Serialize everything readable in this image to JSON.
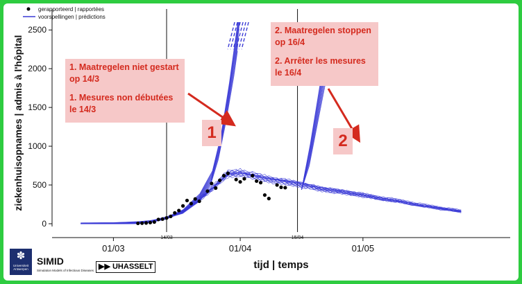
{
  "chart_data": {
    "type": "line",
    "title": "",
    "xlabel": "tijd | temps",
    "ylabel": "ziekenhuisopnames | admis à l'hôpital",
    "ylim": [
      0,
      2600
    ],
    "x_ticks": [
      "01/03",
      "01/04",
      "01/05"
    ],
    "y_ticks": [
      0,
      500,
      1000,
      1500,
      2000,
      2500
    ],
    "vlines": [
      {
        "date": "2020-03-14",
        "label": "14/03"
      },
      {
        "date": "2020-04-15",
        "label": "15/04"
      }
    ],
    "legend": {
      "placement": "top-left",
      "entries": [
        {
          "label": "gerapporteerd | rapportées",
          "marker": "point"
        },
        {
          "label": "voorspellingen | prédictions",
          "marker": "line"
        }
      ]
    },
    "series": [
      {
        "name": "gerapporteerd | rapportées",
        "type": "scatter",
        "points": [
          [
            "2020-03-07",
            5
          ],
          [
            "2020-03-08",
            7
          ],
          [
            "2020-03-09",
            10
          ],
          [
            "2020-03-10",
            15
          ],
          [
            "2020-03-11",
            22
          ],
          [
            "2020-03-12",
            55
          ],
          [
            "2020-03-13",
            60
          ],
          [
            "2020-03-14",
            75
          ],
          [
            "2020-03-15",
            95
          ],
          [
            "2020-03-16",
            140
          ],
          [
            "2020-03-17",
            170
          ],
          [
            "2020-03-18",
            230
          ],
          [
            "2020-03-19",
            300
          ],
          [
            "2020-03-20",
            260
          ],
          [
            "2020-03-21",
            320
          ],
          [
            "2020-03-22",
            290
          ],
          [
            "2020-03-24",
            420
          ],
          [
            "2020-03-25",
            520
          ],
          [
            "2020-03-26",
            460
          ],
          [
            "2020-03-27",
            560
          ],
          [
            "2020-03-28",
            620
          ],
          [
            "2020-03-29",
            650
          ],
          [
            "2020-03-31",
            570
          ],
          [
            "2020-04-01",
            540
          ],
          [
            "2020-04-02",
            580
          ],
          [
            "2020-04-04",
            620
          ],
          [
            "2020-04-05",
            550
          ],
          [
            "2020-04-06",
            530
          ],
          [
            "2020-04-07",
            370
          ],
          [
            "2020-04-08",
            325
          ],
          [
            "2020-04-10",
            500
          ],
          [
            "2020-04-11",
            470
          ],
          [
            "2020-04-12",
            465
          ]
        ]
      },
      {
        "name": "voorspellingen | prédictions",
        "type": "line",
        "points": [
          [
            "2020-02-22",
            0
          ],
          [
            "2020-03-01",
            3
          ],
          [
            "2020-03-07",
            15
          ],
          [
            "2020-03-10",
            30
          ],
          [
            "2020-03-14",
            75
          ],
          [
            "2020-03-18",
            160
          ],
          [
            "2020-03-22",
            310
          ],
          [
            "2020-03-26",
            500
          ],
          [
            "2020-03-29",
            640
          ],
          [
            "2020-04-01",
            660
          ],
          [
            "2020-04-05",
            610
          ],
          [
            "2020-04-10",
            560
          ],
          [
            "2020-04-15",
            520
          ],
          [
            "2020-04-20",
            460
          ],
          [
            "2020-04-25",
            420
          ],
          [
            "2020-04-30",
            380
          ],
          [
            "2020-05-05",
            330
          ],
          [
            "2020-05-10",
            290
          ],
          [
            "2020-05-15",
            240
          ],
          [
            "2020-05-20",
            200
          ],
          [
            "2020-05-25",
            160
          ]
        ]
      },
      {
        "name": "",
        "type": "line",
        "points": [
          [
            "2020-03-14",
            75
          ],
          [
            "2020-03-18",
            160
          ],
          [
            "2020-03-22",
            340
          ],
          [
            "2020-03-25",
            600
          ],
          [
            "2020-03-27",
            1000
          ],
          [
            "2020-03-29",
            1600
          ],
          [
            "2020-03-31",
            2300
          ],
          [
            "2020-04-01",
            2700
          ]
        ]
      },
      {
        "name": "",
        "type": "line",
        "points": [
          [
            "2020-04-16",
            440
          ],
          [
            "2020-04-18",
            900
          ],
          [
            "2020-04-20",
            1500
          ],
          [
            "2020-04-22",
            2100
          ],
          [
            "2020-04-24",
            2700
          ]
        ]
      }
    ]
  },
  "annotations": {
    "box1": {
      "l1": "1. Maatregelen niet gestart",
      "l2": "op 14/3",
      "l3": "1. Mesures non débutées",
      "l4": "le 14/3"
    },
    "box2": {
      "l1": "2. Maatregelen stoppen",
      "l2": "op 16/4",
      "l3": "2. Arrêter les mesures",
      "l4": "le 16/4"
    },
    "badge1": "1",
    "badge2": "2"
  },
  "logos": {
    "uantwerpen": "Universiteit Antwerpen",
    "simid": "SIMID",
    "simid_sub": "Simulation Models of Infectious Diseases",
    "uhasselt": "UHASSELT"
  },
  "colors": {
    "frame": "#2ecc40",
    "prediction": "#3a3ad6",
    "reported": "#000000",
    "annotation_text": "#d42a1e",
    "annotation_bg": "#f6c8c8",
    "arrow": "#d42a1e"
  }
}
